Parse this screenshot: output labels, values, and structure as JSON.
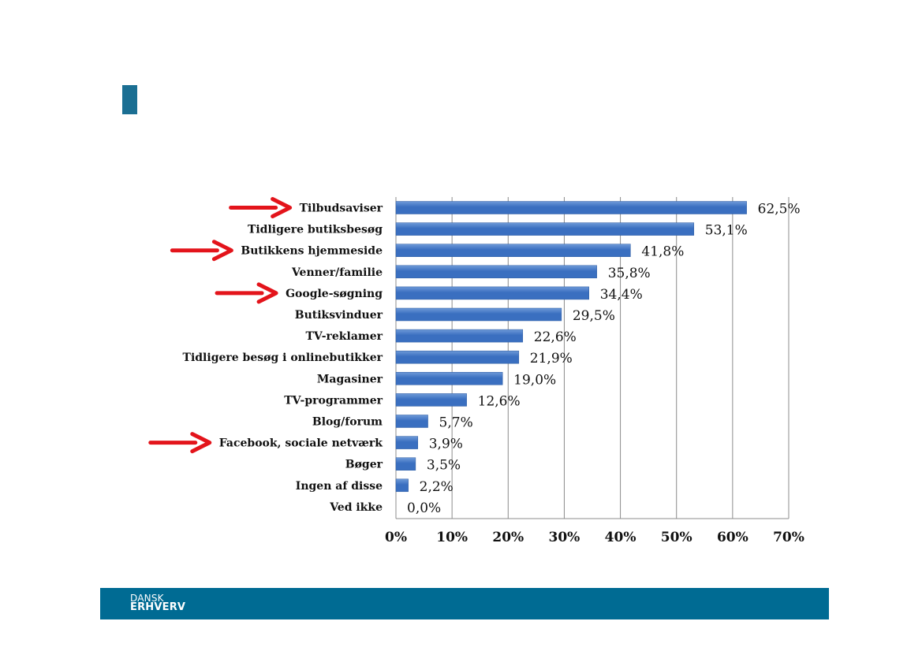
{
  "colors": {
    "accent": "#1b6f93",
    "bar": "#3a6fc0",
    "bar_light": "#6e9ad8",
    "grid": "#8c8c8c",
    "arrow": "#e3141b",
    "footer": "#006b93"
  },
  "chart_data": {
    "type": "bar",
    "orientation": "horizontal",
    "categories": [
      "Tilbudsaviser",
      "Tidligere butiksbesøg",
      "Butikkens hjemmeside",
      "Venner/familie",
      "Google-søgning",
      "Butiksvinduer",
      "TV-reklamer",
      "Tidligere besøg i onlinebutikker",
      "Magasiner",
      "TV-programmer",
      "Blog/forum",
      "Facebook, sociale netværk",
      "Bøger",
      "Ingen af disse",
      "Ved ikke"
    ],
    "values": [
      62.5,
      53.1,
      41.8,
      35.8,
      34.4,
      29.5,
      22.6,
      21.9,
      19.0,
      12.6,
      5.7,
      3.9,
      3.5,
      2.2,
      0.0
    ],
    "value_labels": [
      "62,5%",
      "53,1%",
      "41,8%",
      "35,8%",
      "34,4%",
      "29,5%",
      "22,6%",
      "21,9%",
      "19,0%",
      "12,6%",
      "5,7%",
      "3,9%",
      "3,5%",
      "2,2%",
      "0,0%"
    ],
    "xlim": [
      0,
      70
    ],
    "x_ticks": [
      0,
      10,
      20,
      30,
      40,
      50,
      60,
      70
    ],
    "x_tick_labels": [
      "0%",
      "10%",
      "20%",
      "30%",
      "40%",
      "50%",
      "60%",
      "70%"
    ],
    "grid": true,
    "legend": false,
    "highlighted_categories": [
      "Tilbudsaviser",
      "Butikkens hjemmeside",
      "Google-søgning",
      "Facebook, sociale netværk"
    ]
  },
  "footer": {
    "logo_line1": "DANSK",
    "logo_line2": "ERHVERV"
  }
}
